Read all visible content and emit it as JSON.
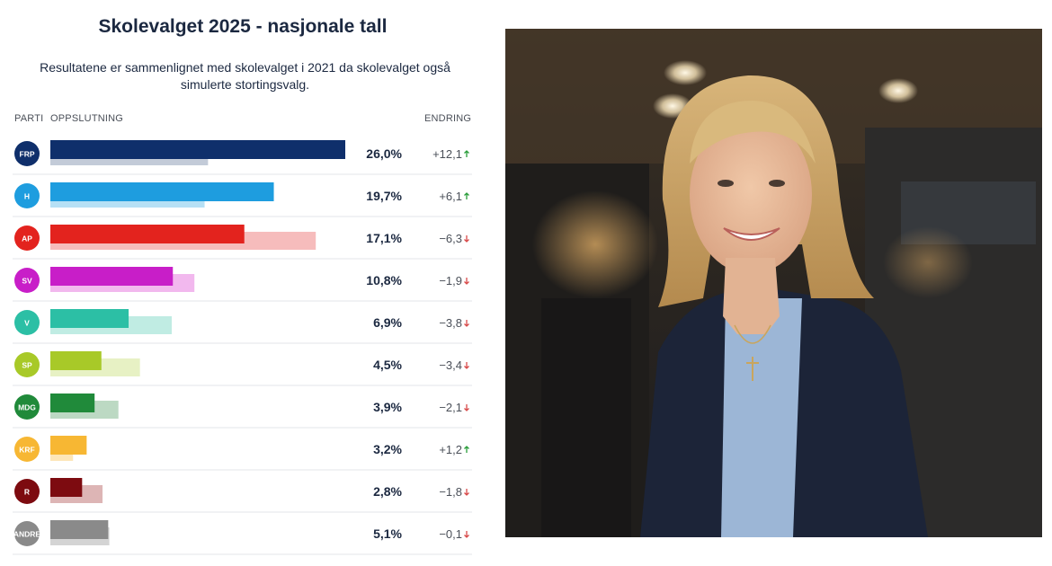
{
  "chart_data": {
    "type": "bar",
    "title": "Skolevalget 2025 - nasjonale tall",
    "subtitle": "Resultatene er sammenlignet med skolevalget i 2021 da skolevalget også simulerte stortingsvalg.",
    "column_headers": {
      "party": "PARTI",
      "share": "OPPSLUTNING",
      "change": "ENDRING"
    },
    "categories": [
      "FRP",
      "H",
      "AP",
      "SV",
      "V",
      "SP",
      "MDG",
      "KRF",
      "R",
      "ANDRE"
    ],
    "series": [
      {
        "values": [
          26.0,
          19.7,
          17.1,
          10.8,
          6.9,
          4.5,
          3.9,
          3.2,
          2.8,
          5.1
        ]
      },
      {
        "values": [
          13.9,
          13.6,
          23.4,
          12.7,
          10.7,
          7.9,
          6.0,
          2.0,
          4.6,
          5.2
        ]
      }
    ],
    "value_labels": [
      "26,0%",
      "19,7%",
      "17,1%",
      "10,8%",
      "6,9%",
      "4,5%",
      "3,9%",
      "3,2%",
      "2,8%",
      "5,1%"
    ],
    "change_labels": [
      "+12,1",
      "+6,1",
      "−6,3",
      "−1,9",
      "−3,8",
      "−3,4",
      "−2,1",
      "+1,2",
      "−1,8",
      "−0,1"
    ],
    "change_direction": [
      "up",
      "up",
      "down",
      "down",
      "down",
      "down",
      "down",
      "up",
      "down",
      "down"
    ],
    "colors": [
      "#0f2f6b",
      "#1e9ddf",
      "#e3231e",
      "#c81ec8",
      "#2cbfa5",
      "#a8c928",
      "#208a3a",
      "#f7b733",
      "#7d0b10",
      "#8a8a8a"
    ],
    "previous_colors": [
      "#c3cbd8",
      "#b6e0f5",
      "#f6bcbc",
      "#f2b8ee",
      "#c0ece3",
      "#e7f1c4",
      "#bcd9c3",
      "#fde6b8",
      "#ddb5b5",
      "#d4d4d4"
    ],
    "up_color": "#2a9d3a",
    "down_color": "#d84a4a",
    "xlim": [
      0,
      26.0
    ]
  },
  "photo": {
    "description_icon": "portrait-photo"
  }
}
